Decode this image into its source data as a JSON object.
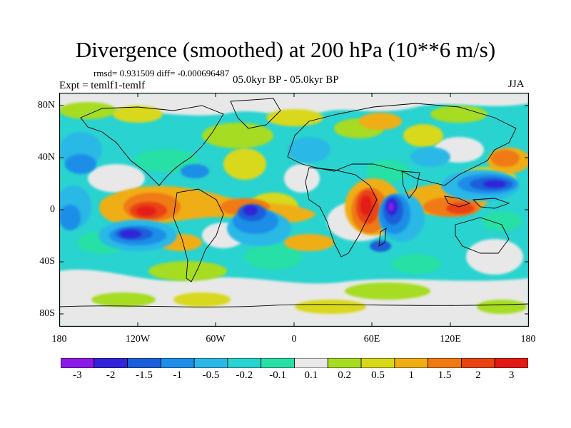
{
  "title": "Divergence (smoothed) at 200 hPa (10**6 m/s)",
  "stats": "rmsd= 0.931509 diff= -0.000696487",
  "experiment": "Expt = temlf1-temlf",
  "period": "05.0kyr BP - 05.0kyr BP",
  "season": "JJA",
  "map": {
    "lat_labels": [
      "80N",
      "40N",
      "0",
      "40S",
      "80S"
    ],
    "lon_labels": [
      "180",
      "120W",
      "60W",
      "0",
      "60E",
      "120E",
      "180"
    ]
  },
  "colorbar": {
    "labels": [
      "-3",
      "-2",
      "-1.5",
      "-1",
      "-0.5",
      "-0.2",
      "-0.1",
      "0.1",
      "0.2",
      "0.5",
      "1",
      "1.5",
      "2",
      "3"
    ],
    "colors": [
      "#8b1ae6",
      "#3223d8",
      "#1a5fd9",
      "#1e8ee8",
      "#2bb8e6",
      "#29d3d0",
      "#28e0a6",
      "#e8e8e8",
      "#a6dc23",
      "#d8d81a",
      "#f0ae12",
      "#ef7a12",
      "#ea4312",
      "#e21a12"
    ]
  }
}
